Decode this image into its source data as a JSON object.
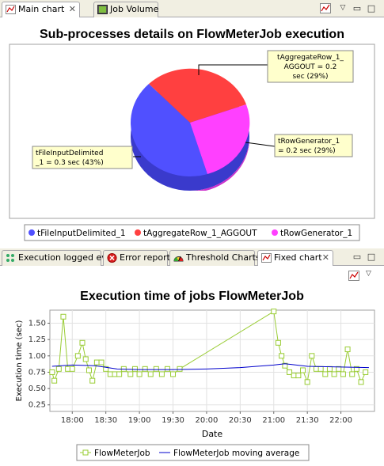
{
  "top_panel": {
    "tabs": [
      {
        "label": "Main chart",
        "active": true
      },
      {
        "label": "Job Volume",
        "active": false
      }
    ],
    "chart_title": "Sub-processes details on FlowMeterJob execution"
  },
  "bottom_panel": {
    "tabs": [
      {
        "label": "Execution logged ev",
        "active": false
      },
      {
        "label": "Error report",
        "active": false
      },
      {
        "label": "Threshold Charts",
        "active": false
      },
      {
        "label": "Fixed chart",
        "active": true
      }
    ],
    "chart_title": "Execution time of jobs FlowMeterJob"
  },
  "chart_data": [
    {
      "type": "pie",
      "title": "Sub-processes details on FlowMeterJob execution",
      "slices": [
        {
          "name": "tFileInputDelimited_1",
          "value": 0.3,
          "percent": 43,
          "color": "#5050ff",
          "label_lines": [
            "tFileInputDelimited",
            "_1 = 0.3 sec (43%)"
          ]
        },
        {
          "name": "tAggregateRow_1_AGGOUT",
          "value": 0.2,
          "percent": 29,
          "color": "#ff4040",
          "label_lines": [
            "tAggregateRow_1_",
            "AGGOUT = 0.2",
            "sec (29%)"
          ]
        },
        {
          "name": "tRowGenerator_1",
          "value": 0.2,
          "percent": 29,
          "color": "#ff40ff",
          "label_lines": [
            "tRowGenerator_1",
            "= 0.2 sec (29%)"
          ]
        }
      ],
      "legend": [
        "tFileInputDelimited_1",
        "tAggregateRow_1_AGGOUT",
        "tRowGenerator_1"
      ]
    },
    {
      "type": "line",
      "title": "Execution time of jobs FlowMeterJob",
      "xlabel": "Date",
      "ylabel": "Execution time (sec)",
      "xticks": [
        "18:00",
        "18:30",
        "19:00",
        "19:30",
        "20:00",
        "20:30",
        "21:00",
        "21:30",
        "22:00"
      ],
      "yticks": [
        "0.25",
        "0.50",
        "0.75",
        "1.00",
        "1.25",
        "1.50"
      ],
      "xlim": [
        "17:40",
        "22:30"
      ],
      "ylim": [
        0.15,
        1.7
      ],
      "series": [
        {
          "name": "FlowMeterJob",
          "color": "#99cc33",
          "points": [
            [
              "17:42",
              0.75
            ],
            [
              "17:44",
              0.62
            ],
            [
              "17:48",
              0.8
            ],
            [
              "17:52",
              1.6
            ],
            [
              "17:56",
              0.8
            ],
            [
              "18:00",
              0.8
            ],
            [
              "18:05",
              1.0
            ],
            [
              "18:09",
              1.2
            ],
            [
              "18:12",
              0.95
            ],
            [
              "18:15",
              0.78
            ],
            [
              "18:18",
              0.62
            ],
            [
              "18:22",
              0.9
            ],
            [
              "18:26",
              0.9
            ],
            [
              "18:30",
              0.8
            ],
            [
              "18:34",
              0.72
            ],
            [
              "18:38",
              0.72
            ],
            [
              "18:42",
              0.72
            ],
            [
              "18:46",
              0.8
            ],
            [
              "18:52",
              0.72
            ],
            [
              "18:56",
              0.8
            ],
            [
              "19:00",
              0.72
            ],
            [
              "19:05",
              0.8
            ],
            [
              "19:10",
              0.72
            ],
            [
              "19:15",
              0.8
            ],
            [
              "19:20",
              0.72
            ],
            [
              "19:25",
              0.8
            ],
            [
              "19:30",
              0.72
            ],
            [
              "19:36",
              0.8
            ],
            [
              "21:00",
              1.68
            ],
            [
              "21:04",
              1.2
            ],
            [
              "21:07",
              1.0
            ],
            [
              "21:10",
              0.85
            ],
            [
              "21:14",
              0.75
            ],
            [
              "21:18",
              0.7
            ],
            [
              "21:22",
              0.7
            ],
            [
              "21:26",
              0.78
            ],
            [
              "21:30",
              0.6
            ],
            [
              "21:34",
              1.0
            ],
            [
              "21:38",
              0.8
            ],
            [
              "21:42",
              0.8
            ],
            [
              "21:46",
              0.72
            ],
            [
              "21:50",
              0.8
            ],
            [
              "21:54",
              0.72
            ],
            [
              "21:58",
              0.8
            ],
            [
              "22:02",
              0.72
            ],
            [
              "22:06",
              1.1
            ],
            [
              "22:10",
              0.72
            ],
            [
              "22:14",
              0.8
            ],
            [
              "22:18",
              0.6
            ],
            [
              "22:22",
              0.75
            ]
          ]
        },
        {
          "name": "FlowMeterJob moving average",
          "color": "#0000cc",
          "points": [
            [
              "17:42",
              0.84
            ],
            [
              "18:00",
              0.86
            ],
            [
              "18:20",
              0.85
            ],
            [
              "18:40",
              0.8
            ],
            [
              "19:00",
              0.79
            ],
            [
              "19:30",
              0.79
            ],
            [
              "20:00",
              0.8
            ],
            [
              "20:30",
              0.82
            ],
            [
              "21:00",
              0.86
            ],
            [
              "21:10",
              0.88
            ],
            [
              "21:30",
              0.84
            ],
            [
              "22:00",
              0.83
            ],
            [
              "22:25",
              0.82
            ]
          ]
        }
      ],
      "legend": [
        "FlowMeterJob",
        "FlowMeterJob moving average"
      ]
    }
  ]
}
